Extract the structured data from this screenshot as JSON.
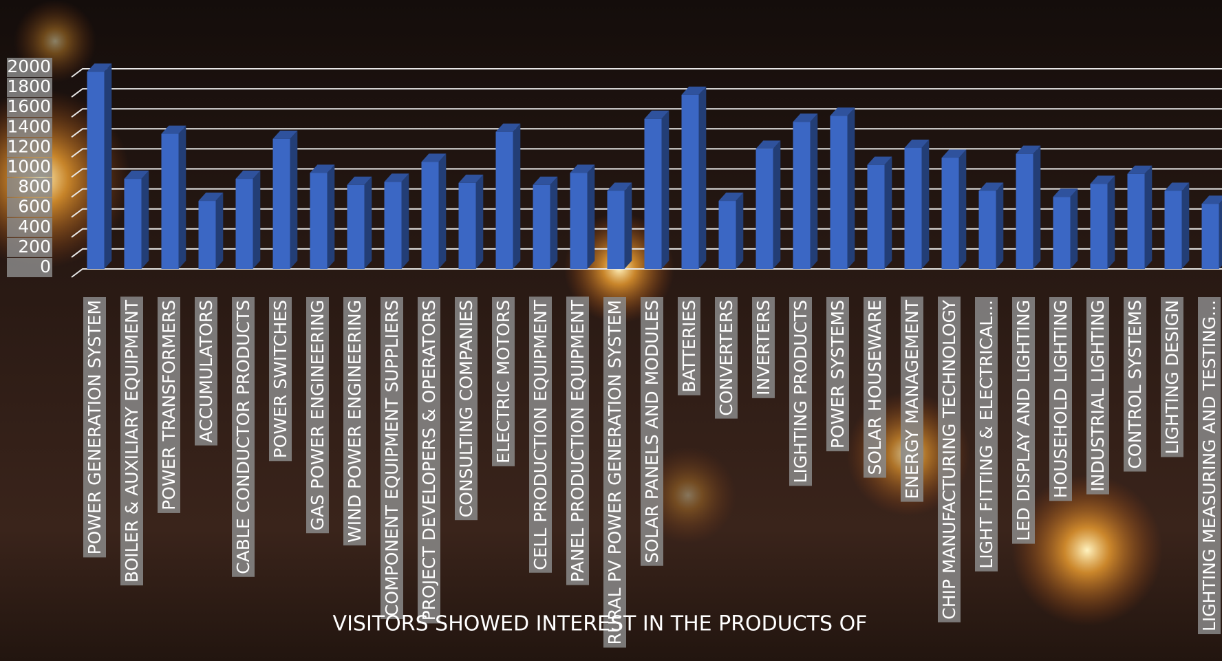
{
  "chart_data": {
    "type": "bar",
    "title": "VISITORS SHOWED INTEREST IN THE PRODUCTS OF",
    "categories": [
      "POWER GENERATION SYSTEM",
      "BOILER & AUXILIARY EQUIPMENT",
      "POWER TRANSFORMERS",
      "ACCUMULATORS",
      "CABLE CONDUCTOR PRODUCTS",
      "POWER SWITCHES",
      "GAS POWER ENGINEERING",
      "WIND POWER ENGINEERING",
      "COMPONENT EQUIPMENT SUPPLIERS",
      "PROJECT DEVELOPERS & OPERATORS",
      "CONSULTING COMPANIES",
      "ELECTRIC MOTORS",
      "CELL PRODUCTION EQUIPMENT",
      "PANEL PRODUCTION EQUIPMENT",
      "RURAL PV POWER GENERATION SYSTEM",
      "SOLAR PANELS AND MODULES",
      "BATTERIES",
      "CONVERTERS",
      "INVERTERS",
      "LIGHTING PRODUCTS",
      "POWER SYSTEMS",
      "SOLAR HOUSEWARE",
      "ENERGY MANAGEMENT",
      "CHIP MANUFACTURING TECHNOLOGY",
      "LIGHT FITTING & ELECTRICAL...",
      "LED DISPLAY AND LIGHTING",
      "HOUSEHOLD LIGHTING",
      "INDUSTRIAL LIGHTING",
      "CONTROL SYSTEMS",
      "LIGHTING DESIGN",
      "LIGHTING MEASURING AND TESTING..."
    ],
    "values": [
      1970,
      900,
      1350,
      680,
      900,
      1300,
      960,
      840,
      870,
      1070,
      860,
      1370,
      840,
      960,
      780,
      1500,
      1740,
      680,
      1200,
      1470,
      1530,
      1040,
      1210,
      1110,
      780,
      1150,
      720,
      850,
      950,
      780,
      650
    ],
    "color": "#3b67c4",
    "ylim": [
      0,
      2000
    ],
    "yticks": [
      0,
      200,
      400,
      600,
      800,
      1000,
      1200,
      1400,
      1600,
      1800,
      2000
    ],
    "grid": true
  }
}
